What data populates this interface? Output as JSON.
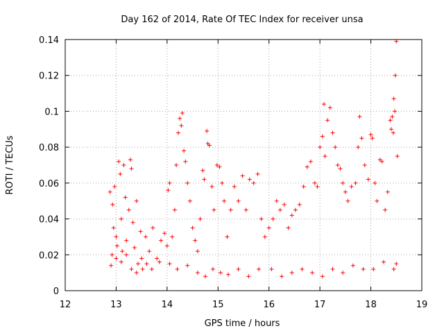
{
  "chart_data": {
    "type": "scatter",
    "title": "Day 162 of 2014, Rate Of TEC Index for receiver unsa",
    "xlabel": "GPS time / hours",
    "ylabel": "ROTI / TECUs",
    "xlim": [
      12,
      19
    ],
    "ylim": [
      0,
      0.14
    ],
    "grid": true,
    "marker": "+",
    "marker_color": "#ff0000",
    "x_ticks": [
      12,
      13,
      14,
      15,
      16,
      17,
      18,
      19
    ],
    "x_tick_labels": [
      "12",
      "13",
      "14",
      "15",
      "16",
      "17",
      "18",
      "19"
    ],
    "y_ticks": [
      0,
      0.02,
      0.04,
      0.06,
      0.08,
      0.1,
      0.12,
      0.14
    ],
    "y_tick_labels": [
      "0",
      "0.02",
      "0.04",
      "0.06",
      "0.08",
      "0.1",
      "0.12",
      "0.14"
    ],
    "series": [
      {
        "name": "ROTI",
        "points": [
          [
            12.88,
            0.055
          ],
          [
            12.9,
            0.014
          ],
          [
            12.93,
            0.048
          ],
          [
            12.95,
            0.035
          ],
          [
            12.97,
            0.058
          ],
          [
            13.0,
            0.03
          ],
          [
            13.02,
            0.025
          ],
          [
            13.05,
            0.072
          ],
          [
            13.08,
            0.065
          ],
          [
            13.1,
            0.04
          ],
          [
            13.12,
            0.022
          ],
          [
            13.15,
            0.07
          ],
          [
            13.18,
            0.052
          ],
          [
            13.2,
            0.028
          ],
          [
            13.25,
            0.045
          ],
          [
            13.28,
            0.073
          ],
          [
            13.3,
            0.068
          ],
          [
            13.33,
            0.038
          ],
          [
            13.36,
            0.024
          ],
          [
            13.4,
            0.05
          ],
          [
            13.43,
            0.015
          ],
          [
            13.48,
            0.033
          ],
          [
            13.52,
            0.012
          ],
          [
            13.58,
            0.03
          ],
          [
            13.65,
            0.022
          ],
          [
            13.72,
            0.035
          ],
          [
            13.8,
            0.018
          ],
          [
            13.88,
            0.028
          ],
          [
            13.95,
            0.032
          ],
          [
            14.0,
            0.025
          ],
          [
            14.02,
            0.056
          ],
          [
            14.05,
            0.06
          ],
          [
            14.1,
            0.03
          ],
          [
            14.15,
            0.045
          ],
          [
            14.18,
            0.07
          ],
          [
            14.22,
            0.088
          ],
          [
            14.25,
            0.096
          ],
          [
            14.28,
            0.092
          ],
          [
            14.3,
            0.099
          ],
          [
            14.33,
            0.078
          ],
          [
            14.36,
            0.072
          ],
          [
            14.4,
            0.06
          ],
          [
            14.45,
            0.05
          ],
          [
            14.5,
            0.035
          ],
          [
            14.55,
            0.028
          ],
          [
            14.6,
            0.022
          ],
          [
            14.65,
            0.04
          ],
          [
            14.7,
            0.067
          ],
          [
            14.73,
            0.062
          ],
          [
            14.78,
            0.089
          ],
          [
            14.8,
            0.082
          ],
          [
            14.83,
            0.081
          ],
          [
            14.88,
            0.058
          ],
          [
            14.92,
            0.045
          ],
          [
            14.98,
            0.07
          ],
          [
            15.03,
            0.069
          ],
          [
            15.08,
            0.06
          ],
          [
            15.12,
            0.05
          ],
          [
            15.18,
            0.03
          ],
          [
            15.25,
            0.045
          ],
          [
            15.32,
            0.058
          ],
          [
            15.4,
            0.05
          ],
          [
            15.48,
            0.064
          ],
          [
            15.55,
            0.045
          ],
          [
            15.62,
            0.062
          ],
          [
            15.7,
            0.06
          ],
          [
            15.78,
            0.065
          ],
          [
            15.85,
            0.04
          ],
          [
            15.92,
            0.03
          ],
          [
            16.0,
            0.035
          ],
          [
            16.08,
            0.04
          ],
          [
            16.15,
            0.05
          ],
          [
            16.22,
            0.045
          ],
          [
            16.3,
            0.048
          ],
          [
            16.38,
            0.035
          ],
          [
            16.45,
            0.042
          ],
          [
            16.52,
            0.045
          ],
          [
            16.6,
            0.048
          ],
          [
            16.68,
            0.058
          ],
          [
            16.75,
            0.069
          ],
          [
            16.82,
            0.072
          ],
          [
            16.9,
            0.06
          ],
          [
            16.95,
            0.058
          ],
          [
            17.0,
            0.08
          ],
          [
            17.05,
            0.086
          ],
          [
            17.08,
            0.104
          ],
          [
            17.1,
            0.075
          ],
          [
            17.15,
            0.095
          ],
          [
            17.2,
            0.102
          ],
          [
            17.25,
            0.088
          ],
          [
            17.3,
            0.08
          ],
          [
            17.35,
            0.07
          ],
          [
            17.4,
            0.068
          ],
          [
            17.45,
            0.06
          ],
          [
            17.5,
            0.055
          ],
          [
            17.55,
            0.05
          ],
          [
            17.62,
            0.058
          ],
          [
            17.7,
            0.06
          ],
          [
            17.75,
            0.08
          ],
          [
            17.78,
            0.097
          ],
          [
            17.82,
            0.085
          ],
          [
            17.88,
            0.07
          ],
          [
            17.95,
            0.062
          ],
          [
            18.0,
            0.087
          ],
          [
            18.03,
            0.085
          ],
          [
            18.08,
            0.06
          ],
          [
            18.12,
            0.05
          ],
          [
            18.18,
            0.073
          ],
          [
            18.22,
            0.072
          ],
          [
            18.28,
            0.045
          ],
          [
            18.33,
            0.055
          ],
          [
            18.38,
            0.095
          ],
          [
            18.4,
            0.09
          ],
          [
            18.42,
            0.097
          ],
          [
            18.44,
            0.088
          ],
          [
            18.45,
            0.107
          ],
          [
            18.47,
            0.1
          ],
          [
            18.48,
            0.12
          ],
          [
            18.5,
            0.139
          ],
          [
            18.52,
            0.075
          ],
          [
            12.92,
            0.02
          ],
          [
            13.0,
            0.018
          ],
          [
            13.1,
            0.016
          ],
          [
            13.2,
            0.02
          ],
          [
            13.3,
            0.012
          ],
          [
            13.4,
            0.01
          ],
          [
            13.5,
            0.018
          ],
          [
            13.6,
            0.015
          ],
          [
            13.7,
            0.012
          ],
          [
            13.85,
            0.016
          ],
          [
            14.05,
            0.015
          ],
          [
            14.2,
            0.012
          ],
          [
            14.4,
            0.014
          ],
          [
            14.6,
            0.01
          ],
          [
            14.75,
            0.008
          ],
          [
            14.9,
            0.012
          ],
          [
            15.05,
            0.01
          ],
          [
            15.2,
            0.009
          ],
          [
            15.4,
            0.012
          ],
          [
            15.6,
            0.008
          ],
          [
            15.8,
            0.012
          ],
          [
            16.05,
            0.012
          ],
          [
            16.25,
            0.008
          ],
          [
            16.45,
            0.01
          ],
          [
            16.65,
            0.012
          ],
          [
            16.85,
            0.01
          ],
          [
            17.05,
            0.008
          ],
          [
            17.25,
            0.012
          ],
          [
            17.45,
            0.01
          ],
          [
            17.65,
            0.014
          ],
          [
            17.85,
            0.012
          ],
          [
            18.05,
            0.012
          ],
          [
            18.25,
            0.016
          ],
          [
            18.45,
            0.012
          ],
          [
            18.5,
            0.015
          ]
        ]
      }
    ]
  }
}
